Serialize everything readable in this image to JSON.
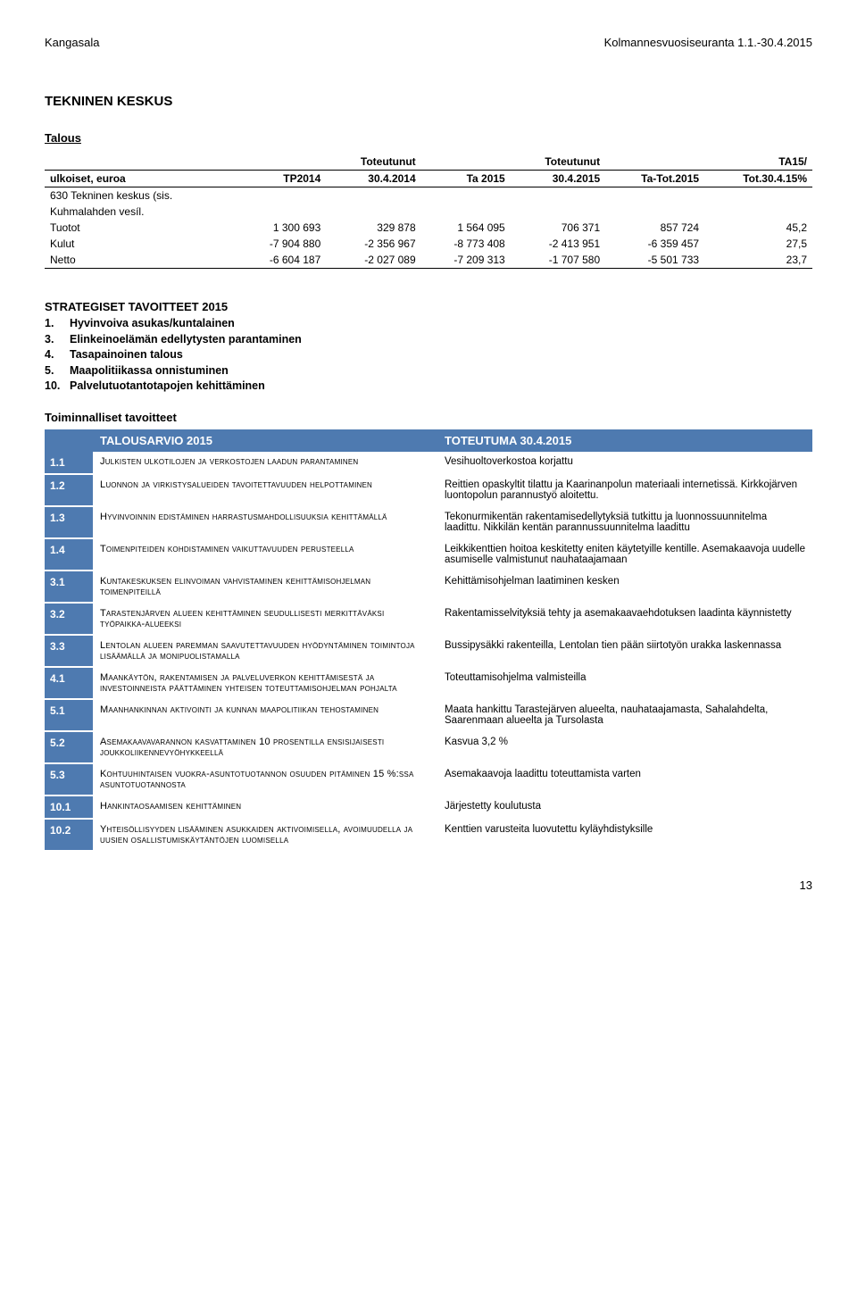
{
  "header": {
    "left": "Kangasala",
    "right": "Kolmannesvuosiseuranta 1.1.-30.4.2015"
  },
  "title": "TEKNINEN KESKUS",
  "subtitle": "Talous",
  "fin_table": {
    "columns_row1": [
      "",
      "",
      "Toteutunut",
      "",
      "Toteutunut",
      "",
      "TA15/"
    ],
    "columns_row2": [
      "ulkoiset, euroa",
      "TP2014",
      "30.4.2014",
      "Ta 2015",
      "30.4.2015",
      "Ta-Tot.2015",
      "Tot.30.4.15%"
    ],
    "section_label_1": "630 Tekninen keskus (sis.",
    "section_label_2": "Kuhmalahden vesíl.",
    "rows": [
      {
        "label": "Tuotot",
        "c": [
          "1 300 693",
          "329 878",
          "1 564 095",
          "706 371",
          "857 724",
          "45,2"
        ]
      },
      {
        "label": "Kulut",
        "c": [
          "-7 904 880",
          "-2 356 967",
          "-8 773 408",
          "-2 413 951",
          "-6 359 457",
          "27,5"
        ]
      },
      {
        "label": "Netto",
        "c": [
          "-6 604 187",
          "-2 027 089",
          "-7 209 313",
          "-1 707 580",
          "-5 501 733",
          "23,7"
        ]
      }
    ]
  },
  "strategiset": {
    "title": "STRATEGISET TAVOITTEET 2015",
    "items": [
      {
        "n": "1.",
        "t": "Hyvinvoiva asukas/kuntalainen"
      },
      {
        "n": "3.",
        "t": "Elinkeinoelämän edellytysten parantaminen"
      },
      {
        "n": "4.",
        "t": "Tasapainoinen talous"
      },
      {
        "n": "5.",
        "t": "Maapolitiikassa onnistuminen"
      },
      {
        "n": "10.",
        "t": "Palvelutuotantotapojen kehittäminen"
      }
    ]
  },
  "toiminnalliset": {
    "title": "Toiminnalliset tavoitteet",
    "col1": "TALOUSARVIO 2015",
    "col2": "TOTEUTUMA 30.4.2015",
    "rows": [
      {
        "n": "1.1",
        "d": "Julkisten ulkotilojen ja verkostojen laadun parantaminen",
        "o": "Vesihuoltoverkostoa korjattu"
      },
      {
        "n": "1.2",
        "d": "Luonnon ja virkistysalueiden tavoitettavuuden helpottaminen",
        "o": "Reittien opaskyltit tilattu ja Kaarinanpolun materiaali internetissä. Kirkkojärven luontopolun parannustyö aloitettu."
      },
      {
        "n": "1.3",
        "d": "Hyvinvoinnin edistäminen harrastusmahdollisuuksia kehittämällä",
        "o": "Tekonurmikentän rakentamisedellytyksiä tutkittu ja luonnossuunnitelma laadittu. Nikkilän kentän parannussuunnitelma laadittu"
      },
      {
        "n": "1.4",
        "d": "Toimenpiteiden kohdistaminen vaikuttavuuden perusteella",
        "o": "Leikkikenttien hoitoa keskitetty eniten käytetyille kentille. Asemakaavoja uudelle asumiselle valmistunut nauhataajamaan"
      },
      {
        "n": "3.1",
        "d": "Kuntakeskuksen elinvoiman vahvistaminen kehittämisohjelman toimenpiteillä",
        "o": "Kehittämisohjelman laatiminen kesken"
      },
      {
        "n": "3.2",
        "d": "Tarastenjärven alueen kehittäminen seudullisesti merkittäväksi työpaikka-alueeksi",
        "o": "Rakentamisselvityksiä tehty ja asemakaavaehdotuksen laadinta käynnistetty"
      },
      {
        "n": "3.3",
        "d": "Lentolan alueen paremman saavutettavuuden hyödyntäminen toimintoja lisäämällä ja monipuolistamalla",
        "o": "Bussipysäkki rakenteilla, Lentolan tien pään siirtotyön urakka laskennassa"
      },
      {
        "n": "4.1",
        "d": "Maankäytön, rakentamisen ja palveluverkon kehittämisestä ja investoinneista päättäminen yhteisen toteuttamisohjelman pohjalta",
        "o": "Toteuttamisohjelma valmisteilla"
      },
      {
        "n": "5.1",
        "d": "Maanhankinnan aktivointi ja kunnan maapolitiikan tehostaminen",
        "o": "Maata hankittu Tarastejärven alueelta, nauhataajamasta, Sahalahdelta, Saarenmaan alueelta ja Tursolasta"
      },
      {
        "n": "5.2",
        "d": "Asemakaavavarannon kasvattaminen 10 prosentilla ensisijaisesti joukkoliikennevyöhykkeellä",
        "o": "Kasvua 3,2 %"
      },
      {
        "n": "5.3",
        "d": "Kohtuuhintaisen vuokra-asuntotuotannon osuuden pitäminen 15 %:ssa asuntotuotannosta",
        "o": "Asemakaavoja laadittu toteuttamista varten"
      },
      {
        "n": "10.1",
        "d": "Hankintaosaamisen kehittäminen",
        "o": "Järjestetty koulutusta"
      },
      {
        "n": "10.2",
        "d": "Yhteisöllisyyden lisääminen asukkaiden aktivoimisella, avoimuudella ja uusien osallistumiskäytäntöjen luomisella",
        "o": "Kenttien varusteita luovutettu kyläyhdistyksille"
      }
    ]
  },
  "page_number": "13"
}
